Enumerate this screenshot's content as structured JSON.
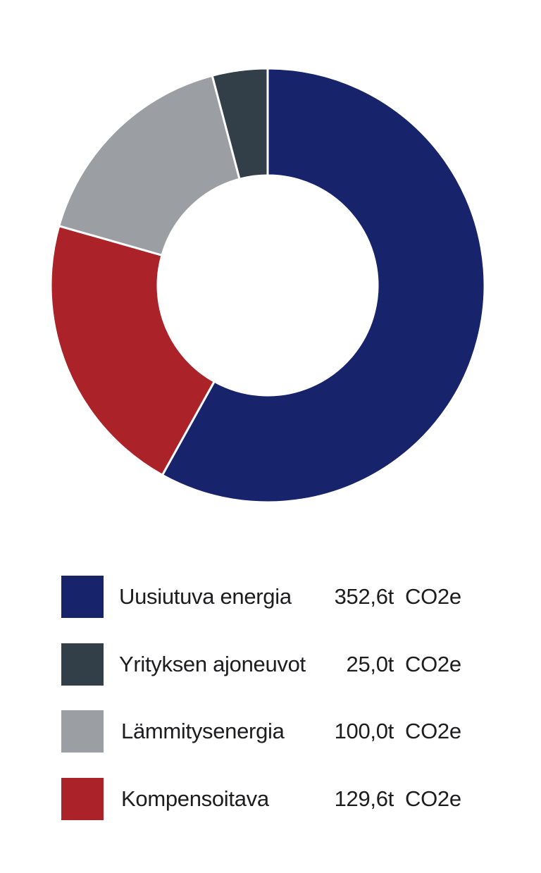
{
  "chart_data": {
    "type": "pie",
    "variant": "donut",
    "title": "",
    "unit": "CO2e",
    "categories": [
      "Uusiutuva energia",
      "Yrityksen ajoneuvot",
      "Lämmitysenergia",
      "Kompensoitava"
    ],
    "values": [
      352.6,
      25.0,
      100.0,
      129.6
    ],
    "value_labels": [
      "352,6t",
      "25,0t",
      "100,0t",
      "129,6t"
    ],
    "slice_order": [
      "Uusiutuva energia",
      "Kompensoitava",
      "Lämmitysenergia",
      "Yrityksen ajoneuvot"
    ],
    "colors": {
      "Uusiutuva energia": "#17246b",
      "Yrityksen ajoneuvot": "#333f48",
      "Lämmitysenergia": "#9b9fa3",
      "Kompensoitava": "#ab2229"
    },
    "legend_placement": "bottom"
  }
}
